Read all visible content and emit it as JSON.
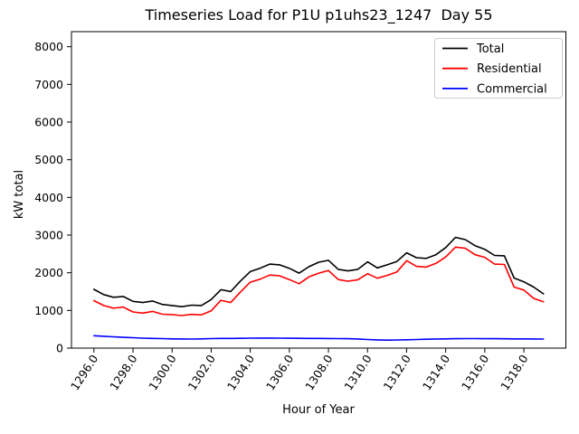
{
  "figure": {
    "background": "#ffffff"
  },
  "chart_data": {
    "type": "line",
    "title": "Timeseries Load for P1U p1uhs23_1247  Day 55",
    "xlabel": "Hour of Year",
    "ylabel": "kW total",
    "xlim": [
      1294.85,
      1320.15
    ],
    "ylim": [
      0,
      8400
    ],
    "grid": false,
    "legend_position": "upper right",
    "xticks": {
      "values": [
        1296,
        1298,
        1300,
        1302,
        1304,
        1306,
        1308,
        1310,
        1312,
        1314,
        1316,
        1318
      ],
      "labels": [
        "1296.0",
        "1298.0",
        "1300.0",
        "1302.0",
        "1304.0",
        "1306.0",
        "1308.0",
        "1310.0",
        "1312.0",
        "1314.0",
        "1316.0",
        "1318.0"
      ]
    },
    "yticks": {
      "values": [
        0,
        1000,
        2000,
        3000,
        4000,
        5000,
        6000,
        7000,
        8000
      ],
      "labels": [
        "0",
        "1000",
        "2000",
        "3000",
        "4000",
        "5000",
        "6000",
        "7000",
        "8000"
      ]
    },
    "x": [
      1296,
      1296.5,
      1297,
      1297.5,
      1298,
      1298.5,
      1299,
      1299.5,
      1300,
      1300.5,
      1301,
      1301.5,
      1302,
      1302.5,
      1303,
      1303.5,
      1304,
      1304.5,
      1305,
      1305.5,
      1306,
      1306.5,
      1307,
      1307.5,
      1308,
      1308.5,
      1309,
      1309.5,
      1310,
      1310.5,
      1311,
      1311.5,
      1312,
      1312.5,
      1313,
      1313.5,
      1314,
      1314.5,
      1315,
      1315.5,
      1316,
      1316.5,
      1317,
      1317.5,
      1318,
      1318.5,
      1319
    ],
    "series": [
      {
        "name": "Total",
        "color": "#000000",
        "values": [
          1560,
          1420,
          1350,
          1370,
          1240,
          1210,
          1250,
          1160,
          1130,
          1100,
          1140,
          1130,
          1290,
          1550,
          1500,
          1780,
          2030,
          2120,
          2230,
          2210,
          2120,
          1990,
          2160,
          2280,
          2330,
          2090,
          2050,
          2090,
          2290,
          2130,
          2210,
          2300,
          2530,
          2400,
          2380,
          2480,
          2670,
          2940,
          2880,
          2720,
          2620,
          2460,
          2450,
          1860,
          1760,
          1620,
          1440
        ]
      },
      {
        "name": "Residential",
        "color": "#ff0000",
        "values": [
          1260,
          1130,
          1060,
          1090,
          960,
          930,
          975,
          900,
          890,
          865,
          895,
          880,
          990,
          1270,
          1210,
          1490,
          1750,
          1830,
          1940,
          1920,
          1820,
          1710,
          1890,
          1990,
          2060,
          1820,
          1775,
          1815,
          1975,
          1855,
          1930,
          2020,
          2320,
          2170,
          2150,
          2250,
          2420,
          2680,
          2650,
          2480,
          2410,
          2230,
          2220,
          1620,
          1540,
          1320,
          1230
        ]
      },
      {
        "name": "Commercial",
        "color": "#0000ff",
        "values": [
          330,
          315,
          300,
          285,
          275,
          265,
          258,
          252,
          246,
          242,
          240,
          244,
          252,
          258,
          256,
          260,
          264,
          266,
          266,
          264,
          262,
          260,
          258,
          256,
          255,
          252,
          250,
          242,
          228,
          218,
          212,
          216,
          222,
          228,
          236,
          242,
          246,
          250,
          251,
          251,
          250,
          250,
          248,
          246,
          245,
          242,
          240
        ]
      }
    ]
  }
}
